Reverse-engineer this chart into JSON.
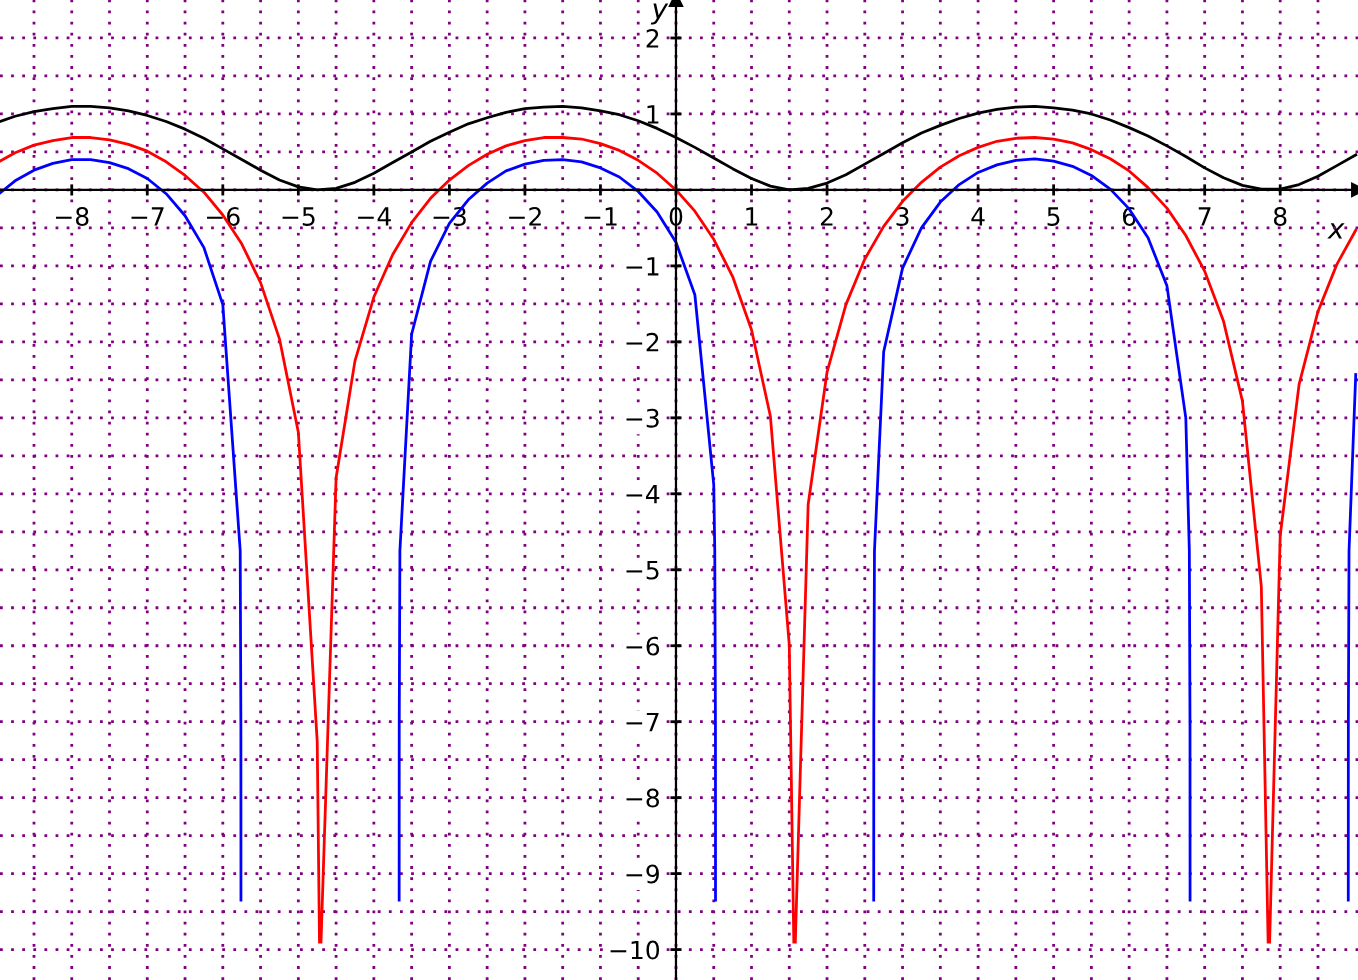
{
  "chart_data": {
    "type": "line",
    "xlabel": "x",
    "ylabel": "y",
    "xlim": [
      -8.95,
      9.03
    ],
    "ylim": [
      -10.4,
      2.5
    ],
    "xticks": [
      {
        "value": -8.5,
        "label": null
      },
      {
        "value": -8,
        "label": "−8"
      },
      {
        "value": -7.5,
        "label": null
      },
      {
        "value": -7,
        "label": "−7"
      },
      {
        "value": -6.5,
        "label": null
      },
      {
        "value": -6,
        "label": "−6"
      },
      {
        "value": -5.5,
        "label": null
      },
      {
        "value": -5,
        "label": "−5"
      },
      {
        "value": -4.5,
        "label": null
      },
      {
        "value": -4,
        "label": "−4"
      },
      {
        "value": -3.5,
        "label": null
      },
      {
        "value": -3,
        "label": "−3"
      },
      {
        "value": -2.5,
        "label": null
      },
      {
        "value": -2,
        "label": "−2"
      },
      {
        "value": -1.5,
        "label": null
      },
      {
        "value": -1,
        "label": "−1"
      },
      {
        "value": -0.5,
        "label": null
      },
      0,
      {
        "value": 0.5,
        "label": null
      },
      1,
      {
        "value": 1.5,
        "label": null
      },
      2,
      {
        "value": 2.5,
        "label": null
      },
      3,
      {
        "value": 3.5,
        "label": null
      },
      4,
      {
        "value": 4.5,
        "label": null
      },
      5,
      {
        "value": 5.5,
        "label": null
      },
      6,
      {
        "value": 6.5,
        "label": null
      },
      7,
      {
        "value": 7.5,
        "label": null
      },
      8,
      {
        "value": 8.5,
        "label": null
      }
    ],
    "yticks": [
      {
        "value": -10,
        "label": "−10"
      },
      {
        "value": -9.5,
        "label": null
      },
      {
        "value": -9,
        "label": "−9"
      },
      {
        "value": -8.5,
        "label": null
      },
      {
        "value": -8,
        "label": "−8"
      },
      {
        "value": -7.5,
        "label": null
      },
      {
        "value": -7,
        "label": "−7"
      },
      {
        "value": -6.5,
        "label": null
      },
      {
        "value": -6,
        "label": "−6"
      },
      {
        "value": -5.5,
        "label": null
      },
      {
        "value": -5,
        "label": "−5"
      },
      {
        "value": -4.5,
        "label": null
      },
      {
        "value": -4,
        "label": "−4"
      },
      {
        "value": -3.5,
        "label": null
      },
      {
        "value": -3,
        "label": "−3"
      },
      {
        "value": -2.5,
        "label": null
      },
      {
        "value": -2,
        "label": "−2"
      },
      {
        "value": -1.5,
        "label": null
      },
      {
        "value": -1,
        "label": "−1"
      },
      {
        "value": -0.5,
        "label": null
      },
      {
        "value": 0,
        "label": null
      },
      {
        "value": 0.5,
        "label": null
      },
      1,
      {
        "value": 1.5,
        "label": null
      },
      2
    ],
    "grid": true,
    "legend": false,
    "marker": "none",
    "line_style": "solid",
    "series": [
      {
        "color": "#000000",
        "x": [
          -8.95,
          -8.75,
          -8.5,
          -8.25,
          -8,
          -7.75,
          -7.5,
          -7.25,
          -7,
          -6.75,
          -6.5,
          -6.25,
          -6,
          -5.75,
          -5.5,
          -5.25,
          -5,
          -4.75,
          -4.5,
          -4.25,
          -4,
          -3.75,
          -3.5,
          -3.25,
          -3,
          -2.75,
          -2.5,
          -2.25,
          -2,
          -1.75,
          -1.5,
          -1.25,
          -1,
          -0.75,
          -0.5,
          -0.25,
          0,
          0.25,
          0.5,
          0.75,
          1,
          1.25,
          1.5,
          1.75,
          2,
          2.25,
          2.5,
          2.75,
          3,
          3.25,
          3.5,
          3.75,
          4,
          4.25,
          4.5,
          4.75,
          5,
          5.25,
          5.5,
          5.75,
          6,
          6.25,
          6.5,
          6.75,
          7,
          7.25,
          7.5,
          7.75,
          8,
          8.25,
          8.5,
          8.75,
          9
        ],
        "values": [
          0.9,
          0.97,
          1.03,
          1.07,
          1.1,
          1.1,
          1.08,
          1.04,
          0.98,
          0.9,
          0.8,
          0.68,
          0.54,
          0.4,
          0.26,
          0.13,
          0.04,
          0.0,
          0.02,
          0.1,
          0.22,
          0.36,
          0.5,
          0.64,
          0.76,
          0.87,
          0.95,
          1.02,
          1.07,
          1.09,
          1.1,
          1.08,
          1.04,
          0.99,
          0.91,
          0.81,
          0.69,
          0.56,
          0.42,
          0.28,
          0.15,
          0.05,
          0.0,
          0.02,
          0.09,
          0.2,
          0.34,
          0.48,
          0.62,
          0.75,
          0.85,
          0.94,
          1.01,
          1.06,
          1.09,
          1.1,
          1.08,
          1.05,
          1.0,
          0.92,
          0.82,
          0.71,
          0.58,
          0.44,
          0.29,
          0.16,
          0.06,
          0.01,
          0.01,
          0.07,
          0.18,
          0.32,
          0.46
        ]
      },
      {
        "color": "#ff0000",
        "x": [
          -8.95,
          -8.75,
          -8.5,
          -8.25,
          -8,
          -7.75,
          -7.5,
          -7.25,
          -7,
          -6.75,
          -6.5,
          -6.25,
          -6,
          -5.75,
          -5.5,
          -5.25,
          -5,
          -4.75,
          -4.72,
          -4.71,
          -4.7,
          -4.5,
          -4.25,
          -4,
          -3.75,
          -3.5,
          -3.25,
          -3,
          -2.75,
          -2.5,
          -2.25,
          -2,
          -1.75,
          -1.5,
          -1.25,
          -1,
          -0.75,
          -0.5,
          -0.25,
          0,
          0.25,
          0.5,
          0.75,
          1,
          1.25,
          1.5,
          1.56,
          1.57,
          1.58,
          1.75,
          2,
          2.25,
          2.5,
          2.75,
          3,
          3.25,
          3.5,
          3.75,
          4,
          4.25,
          4.5,
          4.75,
          5,
          5.25,
          5.5,
          5.75,
          6,
          6.25,
          6.5,
          6.75,
          7,
          7.25,
          7.5,
          7.75,
          7.84,
          7.85,
          7.86,
          8,
          8.25,
          8.5,
          8.75,
          9
        ],
        "values": [
          0.38,
          0.49,
          0.59,
          0.65,
          0.69,
          0.69,
          0.66,
          0.6,
          0.51,
          0.37,
          0.19,
          -0.03,
          -0.33,
          -0.71,
          -1.22,
          -1.96,
          -3.19,
          -7.26,
          -9.9,
          null,
          -9.9,
          -3.79,
          -2.25,
          -1.41,
          -0.85,
          -0.43,
          -0.11,
          0.13,
          0.32,
          0.47,
          0.58,
          0.65,
          0.69,
          0.69,
          0.67,
          0.61,
          0.52,
          0.39,
          0.22,
          0.0,
          -0.28,
          -0.65,
          -1.14,
          -1.84,
          -2.98,
          -5.99,
          -9.9,
          null,
          -9.9,
          -4.14,
          -2.4,
          -1.51,
          -0.91,
          -0.48,
          -0.15,
          0.1,
          0.3,
          0.45,
          0.56,
          0.64,
          0.68,
          0.69,
          0.67,
          0.62,
          0.53,
          0.41,
          0.25,
          0.03,
          -0.24,
          -0.6,
          -1.07,
          -1.73,
          -2.78,
          -5.22,
          -9.9,
          null,
          -9.9,
          -4.55,
          -2.56,
          -1.6,
          -0.98,
          -0.53
        ]
      },
      {
        "color": "#0000ff",
        "x": [
          -8.95,
          -8.75,
          -8.5,
          -8.25,
          -8,
          -7.75,
          -7.5,
          -7.25,
          -7,
          -6.75,
          -6.5,
          -6.25,
          -6,
          -5.7696,
          -5.7606,
          -5.7597,
          -5.75,
          -3.75,
          -3.6651,
          -3.6642,
          -3.6552,
          -3.5,
          -3.25,
          -3,
          -2.75,
          -2.5,
          -2.25,
          -2,
          -1.75,
          -1.5,
          -1.25,
          -1,
          -0.75,
          -0.5,
          -0.25,
          0,
          0.25,
          0.5,
          0.5136,
          0.5226,
          0.5235,
          0.75,
          2.5,
          2.6181,
          2.619,
          2.628,
          2.75,
          3,
          3.25,
          3.5,
          3.75,
          4,
          4.25,
          4.5,
          4.75,
          5,
          5.25,
          5.5,
          5.75,
          6,
          6.25,
          6.5,
          6.75,
          6.7968,
          6.8058,
          6.8067,
          7,
          8.75,
          8.9013,
          8.9022,
          8.9112,
          9
        ],
        "values": [
          -0.04,
          0.12,
          0.26,
          0.35,
          0.4,
          0.4,
          0.36,
          0.28,
          0.15,
          -0.05,
          -0.34,
          -0.76,
          -1.51,
          -4.75,
          -7.05,
          -9.35,
          null,
          null,
          -9.35,
          -7.05,
          -4.75,
          -1.9,
          -0.94,
          -0.44,
          -0.13,
          0.09,
          0.25,
          0.34,
          0.39,
          0.4,
          0.37,
          0.29,
          0.17,
          -0.02,
          -0.29,
          -0.69,
          -1.38,
          -3.88,
          -4.75,
          -7.05,
          -9.35,
          null,
          null,
          -9.35,
          -7.05,
          -4.75,
          -2.13,
          -1.03,
          -0.5,
          -0.16,
          0.07,
          0.23,
          0.33,
          0.39,
          0.41,
          0.38,
          0.31,
          0.19,
          0.01,
          -0.25,
          -0.63,
          -1.26,
          -3.0,
          -4.75,
          -7.05,
          -9.35,
          null,
          null,
          -9.35,
          -7.05,
          -4.75,
          -2.43
        ]
      }
    ]
  }
}
